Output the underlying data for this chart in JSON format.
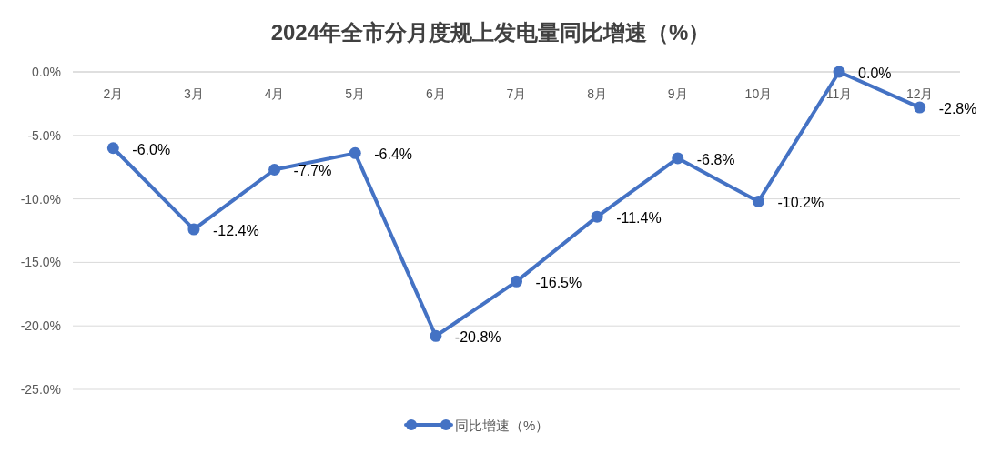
{
  "chart_data": {
    "type": "line",
    "title": "2024年全市分月度规上发电量同比增速（%）",
    "categories": [
      "2月",
      "3月",
      "4月",
      "5月",
      "6月",
      "7月",
      "8月",
      "9月",
      "10月",
      "11月",
      "12月"
    ],
    "series": [
      {
        "name": "同比增速（%）",
        "color": "#4472c4",
        "values": [
          -6.0,
          -12.4,
          -7.7,
          -6.4,
          -20.8,
          -16.5,
          -11.4,
          -6.8,
          -10.2,
          0.0,
          -2.8
        ],
        "value_labels": [
          "-6.0%",
          "-12.4%",
          "-7.7%",
          "-6.4%",
          "-20.8%",
          "-16.5%",
          "-11.4%",
          "-6.8%",
          "-10.2%",
          "0.0%",
          "-2.8%"
        ]
      }
    ],
    "ylim": [
      -25,
      0
    ],
    "yticks": [
      {
        "value": 0,
        "label": "0.0%"
      },
      {
        "value": -5,
        "label": "-5.0%"
      },
      {
        "value": -10,
        "label": "-10.0%"
      },
      {
        "value": -15,
        "label": "-15.0%"
      },
      {
        "value": -20,
        "label": "-20.0%"
      },
      {
        "value": -25,
        "label": "-25.0%"
      }
    ],
    "grid": "y",
    "legend": "bottom",
    "marker": "circle",
    "line_style": "solid"
  }
}
